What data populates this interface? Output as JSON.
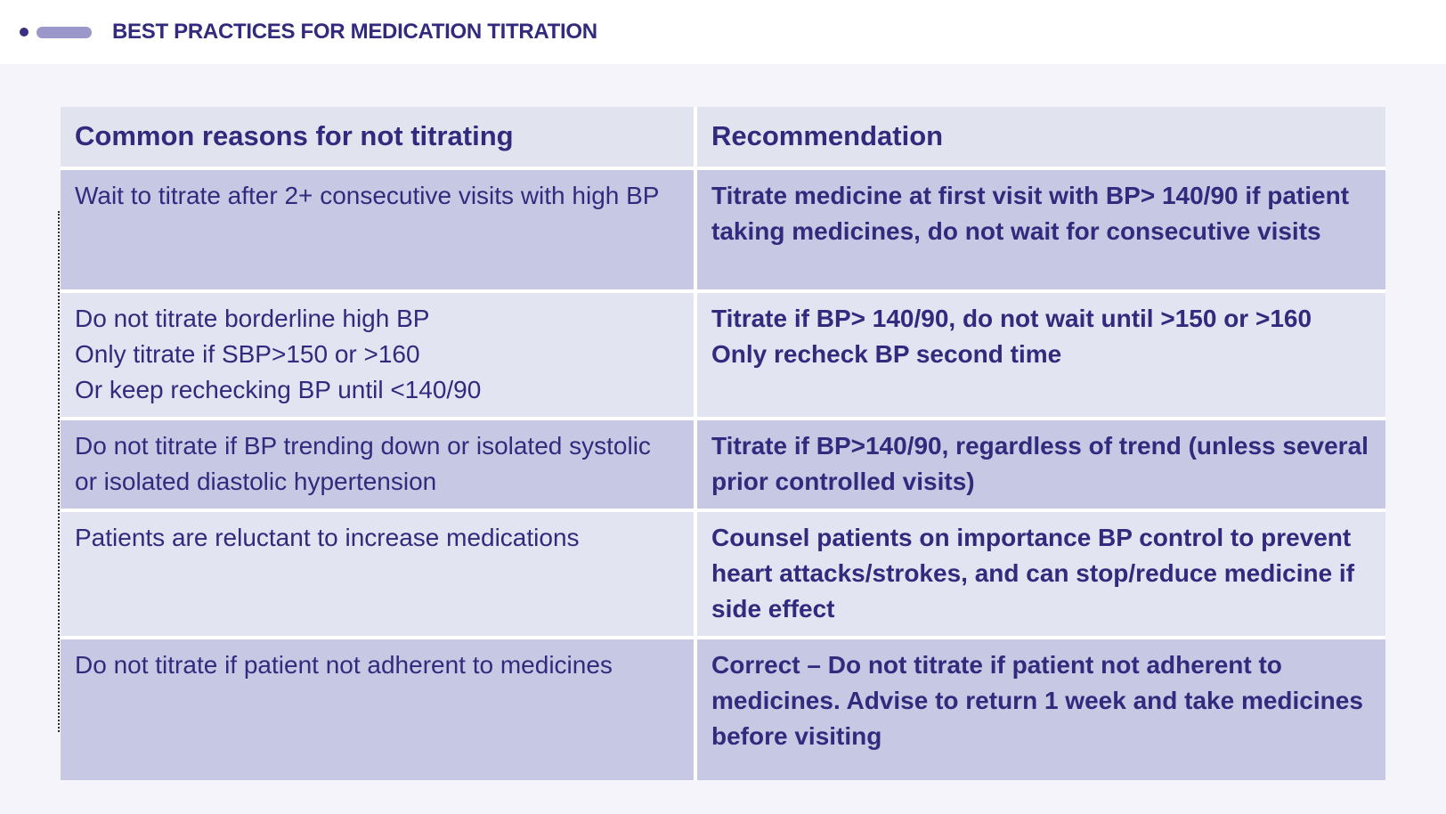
{
  "page": {
    "title": "BEST PRACTICES FOR MEDICATION TITRATION"
  },
  "icons": {
    "bullet_dot": "bullet-dot-icon",
    "bullet_dash": "dash-pill-icon"
  },
  "colors": {
    "title_text": "#312a7d",
    "header_row_bg": "#e1e3ef",
    "dark_row_bg": "#c7c9e4",
    "light_row_bg": "#e2e4f1",
    "banner_bg": "#ffffff",
    "page_bg": "#f5f4fa"
  },
  "table": {
    "columns": [
      "Common reasons for not titrating",
      "Recommendation"
    ],
    "rows": [
      {
        "reason": "Wait to titrate after 2+ consecutive visits with high BP",
        "recommendation": "Titrate medicine at first visit with BP> 140/90 if patient taking medicines, do not wait for consecutive visits"
      },
      {
        "reason": "Do not titrate borderline high BP\nOnly titrate if SBP>150 or >160\nOr keep rechecking BP until <140/90",
        "recommendation": "Titrate if BP> 140/90, do not wait until >150 or >160\nOnly recheck BP second time"
      },
      {
        "reason": "Do not titrate if BP trending down or isolated systolic or isolated diastolic hypertension",
        "recommendation": "Titrate if BP>140/90, regardless of trend (unless several prior controlled visits)"
      },
      {
        "reason": "Patients are reluctant to increase medications",
        "recommendation": "Counsel patients on importance BP control to prevent heart attacks/strokes, and can stop/reduce medicine if side effect"
      },
      {
        "reason": "Do not titrate if patient not adherent to medicines",
        "recommendation": "Correct – Do not titrate if patient not adherent to medicines. Advise to return 1 week and take medicines before visiting"
      }
    ]
  }
}
